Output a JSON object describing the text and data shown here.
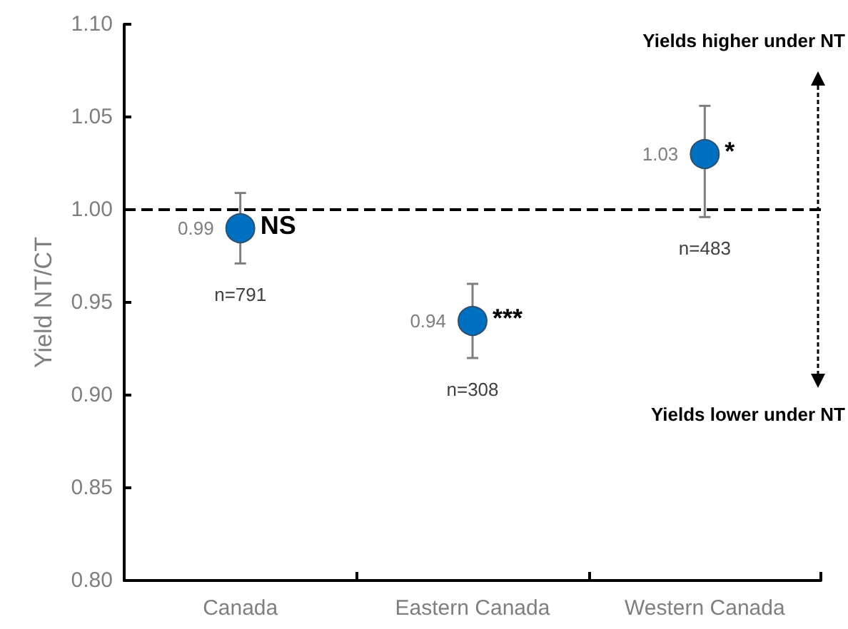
{
  "chart_data": {
    "type": "scatter",
    "ylabel": "Yield NT/CT",
    "categories": [
      "Canada",
      "Eastern Canada",
      "Western Canada"
    ],
    "values": [
      0.99,
      0.94,
      1.03
    ],
    "value_labels": [
      "0.99",
      "0.94",
      "1.03"
    ],
    "errors": [
      [
        0.971,
        1.009
      ],
      [
        0.92,
        0.96
      ],
      [
        0.996,
        1.056
      ]
    ],
    "color": "#0070c0",
    "marker": "circle",
    "ylim": [
      0.8,
      1.1
    ],
    "yticks": [
      {
        "value": 0.8,
        "label": "0.80"
      },
      {
        "value": 0.85,
        "label": "0.85"
      },
      {
        "value": 0.9,
        "label": "0.90"
      },
      {
        "value": 0.95,
        "label": "0.95"
      },
      {
        "value": 1.0,
        "label": "1.00"
      },
      {
        "value": 1.05,
        "label": "1.05"
      },
      {
        "value": 1.1,
        "label": "1.10"
      }
    ],
    "grid": false,
    "ref_lines": [
      {
        "axis": "y",
        "value": 1.0,
        "color": "#000000",
        "line_style": "dashed"
      }
    ],
    "annotations": [
      "Yields higher under NT",
      {
        "text": "NS",
        "x": "Canada",
        "y": 0.99
      },
      "n=791",
      {
        "text": "***",
        "x": "Eastern Canada",
        "y": 0.94
      },
      "n=308",
      {
        "text": "*",
        "x": "Western Canada",
        "y": 1.03
      },
      "n=483",
      "Yields lower under NT"
    ]
  }
}
